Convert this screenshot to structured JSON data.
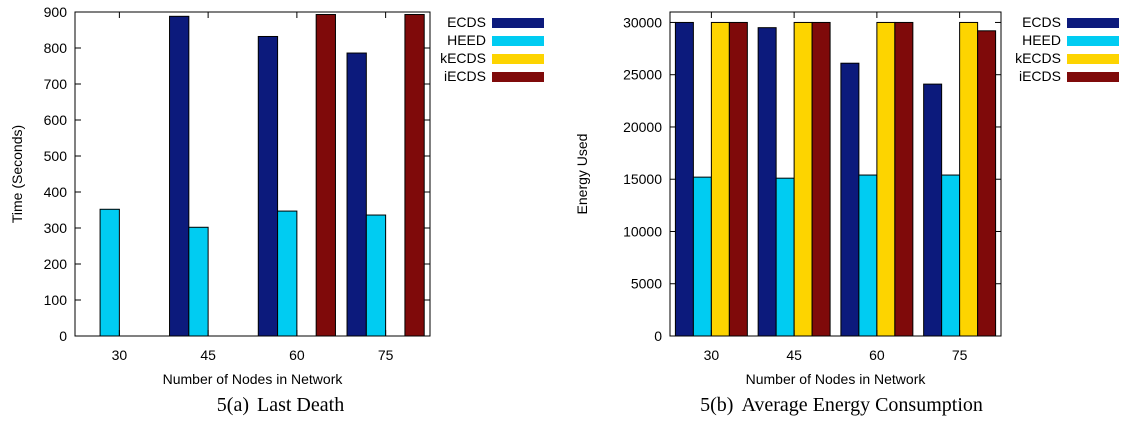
{
  "colors": {
    "ECDS": "#0c1a7c",
    "HEED": "#00ccf2",
    "kECDS": "#fdd400",
    "iECDS": "#7f0a0a"
  },
  "chart_data": [
    {
      "type": "bar",
      "caption_label": "5(a)",
      "caption_text": "Last Death",
      "categories": [
        "30",
        "45",
        "60",
        "75"
      ],
      "xlabel": "Number of Nodes in Network",
      "ylabel": "Time (Seconds)",
      "ylim": [
        0,
        900
      ],
      "yticks": [
        0,
        100,
        200,
        300,
        400,
        500,
        600,
        700,
        800,
        900
      ],
      "legend_position": "top-right",
      "series": [
        {
          "name": "ECDS",
          "values": [
            0,
            888,
            832,
            786
          ]
        },
        {
          "name": "HEED",
          "values": [
            352,
            302,
            347,
            336
          ]
        },
        {
          "name": "kECDS",
          "values": [
            0,
            0,
            0,
            0
          ]
        },
        {
          "name": "iECDS",
          "values": [
            0,
            0,
            893,
            893
          ]
        }
      ]
    },
    {
      "type": "bar",
      "caption_label": "5(b)",
      "caption_text": "Average Energy Consumption",
      "categories": [
        "30",
        "45",
        "60",
        "75"
      ],
      "xlabel": "Number of Nodes in Network",
      "ylabel": "Energy Used",
      "ylim": [
        0,
        31000
      ],
      "yticks": [
        0,
        5000,
        10000,
        15000,
        20000,
        25000,
        30000
      ],
      "legend_position": "top-right",
      "series": [
        {
          "name": "ECDS",
          "values": [
            30000,
            29500,
            26100,
            24100
          ]
        },
        {
          "name": "HEED",
          "values": [
            15200,
            15100,
            15400,
            15400
          ]
        },
        {
          "name": "kECDS",
          "values": [
            30000,
            30000,
            30000,
            30000
          ]
        },
        {
          "name": "iECDS",
          "values": [
            30000,
            30000,
            30000,
            29200
          ]
        }
      ]
    }
  ]
}
